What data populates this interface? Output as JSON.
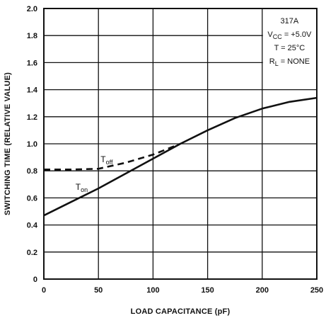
{
  "chart_data": {
    "type": "line",
    "xlabel": "LOAD CAPACITANCE (pF)",
    "ylabel": "SWITCHING TIME (RELATIVE VALUE)",
    "xlim": [
      0,
      250
    ],
    "ylim": [
      0,
      2.0
    ],
    "x_ticks": [
      "0",
      "50",
      "100",
      "150",
      "200",
      "250"
    ],
    "y_ticks": [
      "0",
      "0.2",
      "0.4",
      "0.6",
      "0.8",
      "1.0",
      "1.2",
      "1.4",
      "1.6",
      "1.8",
      "2.0"
    ],
    "grid": true,
    "legend": {
      "placement": "top-right",
      "lines": [
        "317A",
        "VCC = +5.0V",
        "T = 25°C",
        "RL = NONE"
      ],
      "line_parts": [
        [
          {
            "t": "317A"
          }
        ],
        [
          {
            "t": "V"
          },
          {
            "t": "CC",
            "sub": true
          },
          {
            "t": " = +5.0V"
          }
        ],
        [
          {
            "t": "T = 25°C"
          }
        ],
        [
          {
            "t": "R"
          },
          {
            "t": "L",
            "sub": true
          },
          {
            "t": " = NONE"
          }
        ]
      ]
    },
    "series": [
      {
        "name": "Ton",
        "label_parts": [
          {
            "t": "T"
          },
          {
            "t": "on",
            "sub": true
          }
        ],
        "style": "solid",
        "x": [
          0,
          25,
          50,
          75,
          100,
          125,
          150,
          175,
          200,
          225,
          250
        ],
        "y": [
          0.47,
          0.57,
          0.67,
          0.78,
          0.89,
          1.0,
          1.1,
          1.19,
          1.26,
          1.31,
          1.34
        ]
      },
      {
        "name": "Toff",
        "label_parts": [
          {
            "t": "T"
          },
          {
            "t": "off",
            "sub": true
          }
        ],
        "style": "dashed",
        "x": [
          0,
          25,
          50,
          75,
          100,
          125
        ],
        "y": [
          0.81,
          0.81,
          0.815,
          0.86,
          0.92,
          1.0
        ]
      }
    ]
  }
}
